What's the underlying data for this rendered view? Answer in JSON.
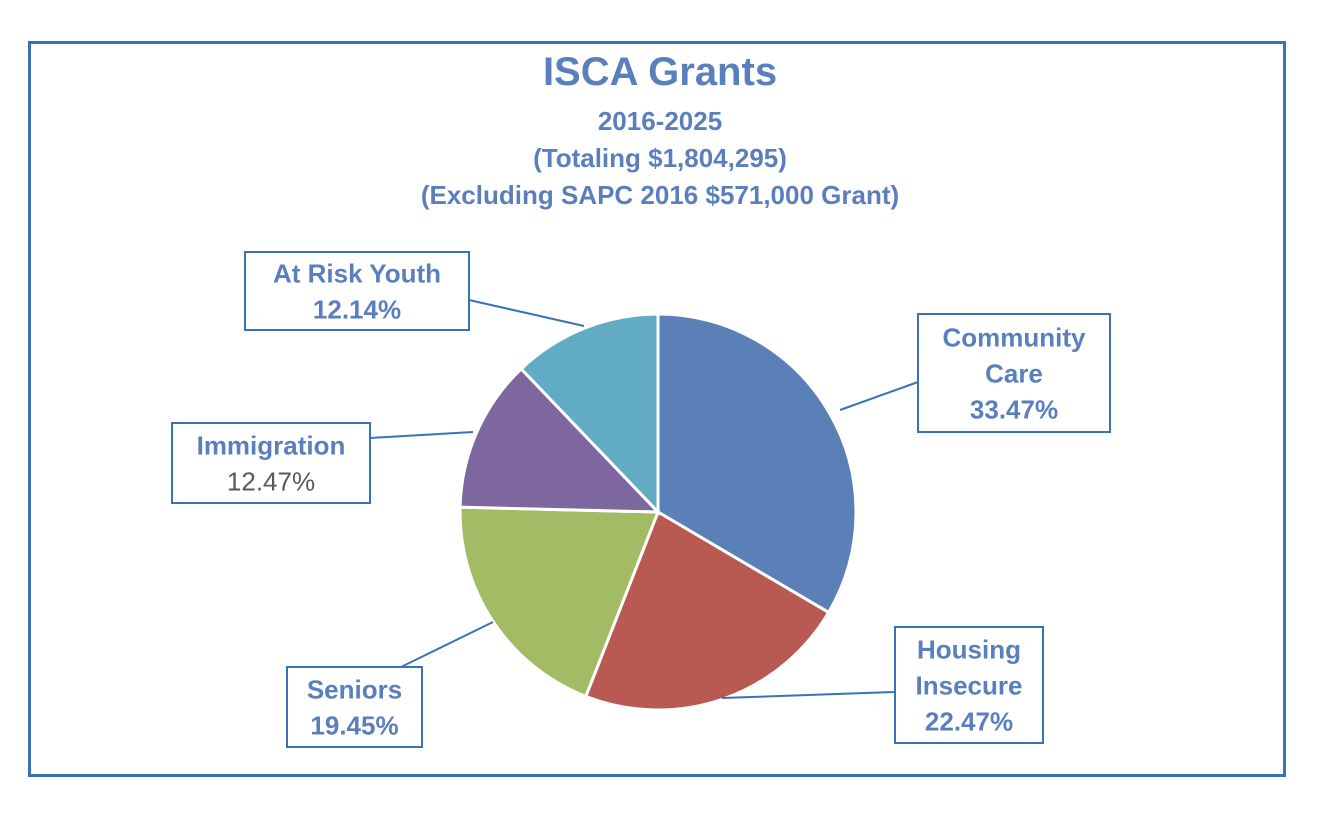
{
  "chart_data": {
    "type": "pie",
    "title": "ISCA Grants",
    "subtitles": [
      "2016-2025",
      "(Totaling $1,804,295)",
      "(Excluding SAPC 2016 $571,000 Grant)"
    ],
    "slices": [
      {
        "lines": [
          "Community",
          "Care"
        ],
        "value": 33.47,
        "label": "33.47%",
        "color": "#5b80b8",
        "pct_bold": true
      },
      {
        "lines": [
          "Housing",
          "Insecure"
        ],
        "value": 22.47,
        "label": "22.47%",
        "color": "#b85a52",
        "pct_bold": true
      },
      {
        "lines": [
          "Seniors"
        ],
        "value": 19.45,
        "label": "19.45%",
        "color": "#a2bb64",
        "pct_bold": true
      },
      {
        "lines": [
          "Immigration"
        ],
        "value": 12.47,
        "label": "12.47%",
        "color": "#7e679e",
        "pct_bold": false
      },
      {
        "lines": [
          "At Risk Youth"
        ],
        "value": 12.14,
        "label": "12.14%",
        "color": "#62abc5",
        "pct_bold": true
      }
    ],
    "start_angle_deg": 0,
    "direction": "clockwise"
  },
  "colors": {
    "frame": "#3a72b6",
    "title_text": "#5a7fbc",
    "label_text": "#5a7fbc",
    "callout_border": "#3a72b6",
    "value_text_plain": "#595959"
  }
}
